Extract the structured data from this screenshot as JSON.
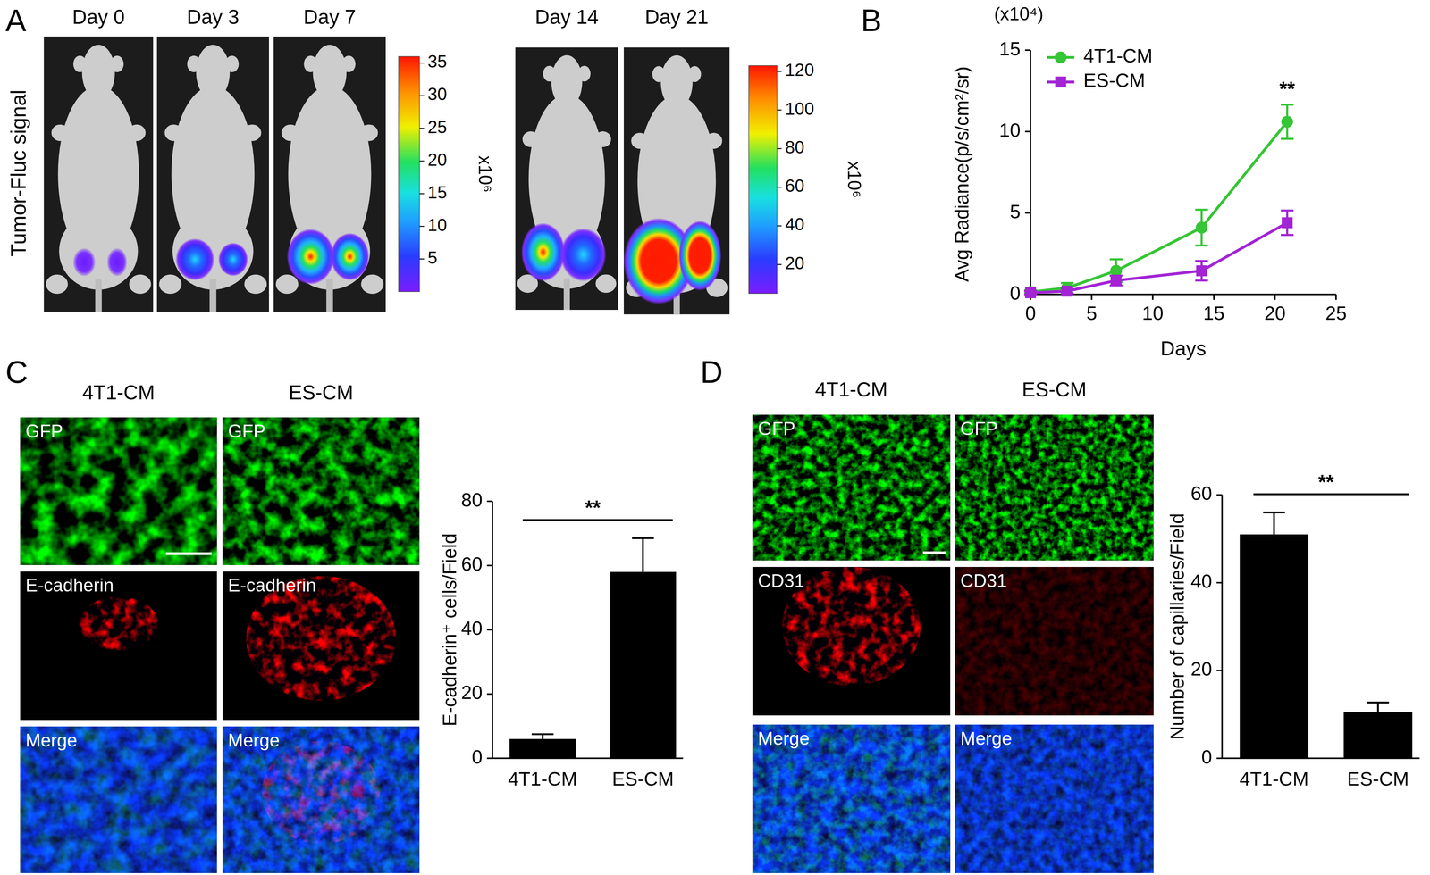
{
  "figure": {
    "panel_labels": [
      "A",
      "B",
      "C",
      "D"
    ],
    "panel_a": {
      "ylabel": "Tumor-Fluc signal",
      "days": [
        "Day 0",
        "Day 3",
        "Day 7",
        "Day 14",
        "Day 21"
      ],
      "colorbars": [
        {
          "range": [
            0,
            36
          ],
          "ticks": [
            5,
            10,
            15,
            20,
            25,
            30,
            35
          ],
          "label": "x10⁶"
        },
        {
          "range": [
            5,
            123
          ],
          "ticks": [
            20,
            40,
            60,
            80,
            100,
            120
          ],
          "label": "x10⁶"
        }
      ]
    },
    "panel_c": {
      "columns": [
        "4T1-CM",
        "ES-CM"
      ],
      "rows": [
        "GFP",
        "E-cadherin",
        "Merge"
      ]
    },
    "panel_d": {
      "columns": [
        "4T1-CM",
        "ES-CM"
      ],
      "rows": [
        "GFP",
        "CD31",
        "Merge"
      ]
    }
  },
  "chart_data": [
    {
      "type": "line",
      "xlabel": "Days",
      "ylabel": "Avg Radiance(p/s/cm²/sr)",
      "x": [
        0,
        3,
        7,
        14,
        21
      ],
      "xlim": [
        0,
        25
      ],
      "xticks": [
        0,
        5,
        10,
        15,
        20,
        25
      ],
      "ylim": [
        0,
        15
      ],
      "yticks": [
        0,
        5,
        10,
        15
      ],
      "legend": "upper left",
      "annotations": [
        {
          "text": "(x10⁴)"
        },
        {
          "text": "**",
          "x": 21
        }
      ],
      "series": [
        {
          "name": "4T1-CM",
          "color": "#35c535",
          "marker": "circle",
          "values": [
            0.15,
            0.4,
            1.45,
            4.1,
            10.6
          ],
          "errors": [
            0.1,
            0.3,
            0.7,
            1.1,
            1.05
          ]
        },
        {
          "name": "ES-CM",
          "color": "#a224d4",
          "marker": "square",
          "values": [
            0.1,
            0.2,
            0.85,
            1.45,
            4.4
          ],
          "errors": [
            0.1,
            0.15,
            0.3,
            0.6,
            0.75
          ]
        }
      ]
    },
    {
      "type": "bar",
      "ylabel": "E-cadherin⁺ cells/Field",
      "categories": [
        "4T1-CM",
        "ES-CM"
      ],
      "values": [
        6,
        58
      ],
      "errors": [
        1.5,
        10.5
      ],
      "color": "#000000",
      "ylim": [
        0,
        80
      ],
      "yticks": [
        0,
        20,
        40,
        60,
        80
      ],
      "annotations": [
        {
          "text": "**"
        }
      ]
    },
    {
      "type": "bar",
      "ylabel": "Number of capillaries/Field",
      "categories": [
        "4T1-CM",
        "ES-CM"
      ],
      "values": [
        51,
        10.5
      ],
      "errors": [
        5,
        2.2
      ],
      "color": "#000000",
      "ylim": [
        0,
        60
      ],
      "yticks": [
        0,
        20,
        40,
        60
      ],
      "annotations": [
        {
          "text": "**"
        }
      ]
    }
  ]
}
